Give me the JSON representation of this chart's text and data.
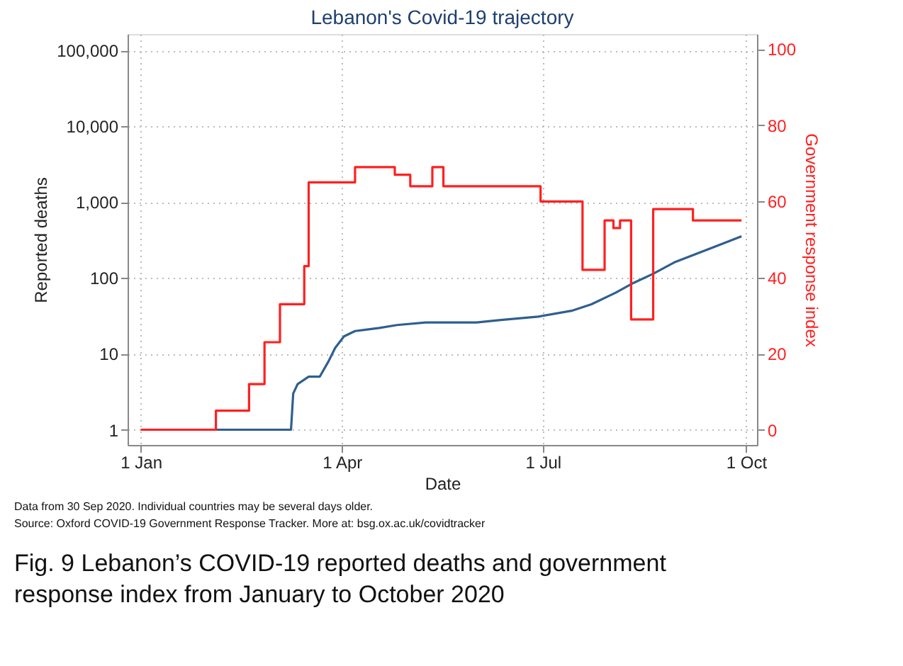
{
  "chart_data": {
    "type": "line",
    "title": "Lebanon's Covid-19 trajectory",
    "xlabel": "Date",
    "ylabel": "Reported deaths",
    "y2label": "Government response index",
    "xlim": [
      "2019-12-26",
      "2020-10-06"
    ],
    "xticks": [
      {
        "value": "2020-01-01",
        "label": "1 Jan"
      },
      {
        "value": "2020-04-01",
        "label": "1 Apr"
      },
      {
        "value": "2020-07-01",
        "label": "1 Jul"
      },
      {
        "value": "2020-10-01",
        "label": "1 Oct"
      }
    ],
    "log": "y",
    "ylim": [
      0.63,
      165000
    ],
    "yticks": [
      1,
      10,
      100,
      {
        "value": 1000,
        "label": "1,000"
      },
      {
        "value": 10000,
        "label": "10,000"
      },
      {
        "value": 100000,
        "label": "100,000"
      }
    ],
    "y2lim": [
      -4,
      104
    ],
    "y2ticks": [
      0,
      20,
      40,
      60,
      80,
      100
    ],
    "grid": true,
    "series": [
      {
        "type": "line",
        "color": "#2f5f8f",
        "x": [
          "2020-02-04",
          "2020-03-09",
          "2020-03-10",
          "2020-03-12",
          "2020-03-17",
          "2020-03-22",
          "2020-03-26",
          "2020-03-29",
          "2020-04-02",
          "2020-04-07",
          "2020-04-18",
          "2020-04-26",
          "2020-05-09",
          "2020-06-01",
          "2020-06-12",
          "2020-06-29",
          "2020-07-14",
          "2020-07-23",
          "2020-08-03",
          "2020-08-11",
          "2020-08-20",
          "2020-08-30",
          "2020-09-10",
          "2020-09-21",
          "2020-09-29"
        ],
        "values": [
          1,
          1,
          3,
          4,
          5,
          5,
          8,
          12,
          17,
          20,
          22,
          24,
          26,
          26,
          28,
          31,
          37,
          45,
          64,
          86,
          114,
          163,
          217,
          288,
          356
        ]
      },
      {
        "type": "step",
        "axis": "y2",
        "color": "#ff2020",
        "x": [
          "2020-01-01",
          "2020-02-04",
          "2020-02-19",
          "2020-02-26",
          "2020-03-04",
          "2020-03-15",
          "2020-03-17",
          "2020-04-07",
          "2020-04-25",
          "2020-05-02",
          "2020-05-12",
          "2020-05-17",
          "2020-06-30",
          "2020-07-19",
          "2020-07-23",
          "2020-07-29",
          "2020-08-02",
          "2020-08-05",
          "2020-08-10",
          "2020-08-20",
          "2020-09-07",
          "2020-09-29"
        ],
        "values": [
          0,
          5,
          12,
          23,
          33,
          43,
          65,
          69,
          67,
          64,
          69,
          64,
          60,
          42,
          42,
          55,
          53,
          55,
          29,
          58,
          55,
          55
        ]
      }
    ],
    "annotations": [
      "Data from 30 Sep 2020. Individual countries may be several days older.",
      "Source: Oxford COVID-19 Government Response Tracker. More at: bsg.ox.ac.uk/covidtracker",
      "Fig. 9 Lebanon’s COVID-19 reported deaths and government response index from January to October 2020"
    ]
  }
}
